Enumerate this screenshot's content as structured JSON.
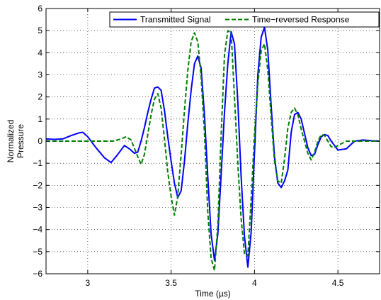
{
  "chart_data": {
    "type": "line",
    "xlabel": "Time (µs)",
    "ylabel": [
      "Normalized",
      "Pressure"
    ],
    "xlim": [
      2.75,
      4.75
    ],
    "ylim": [
      -6,
      6
    ],
    "xticks": [
      3,
      3.5,
      4,
      4.5
    ],
    "xtick_labels": [
      "3",
      "3.5",
      "4",
      "4.5"
    ],
    "yticks": [
      -6,
      -5,
      -4,
      -3,
      -2,
      -1,
      0,
      1,
      2,
      3,
      4,
      5,
      6
    ],
    "ytick_labels": [
      "−6",
      "−5",
      "−4",
      "−3",
      "−2",
      "−1",
      "0",
      "1",
      "2",
      "3",
      "4",
      "5",
      "6"
    ],
    "grid": true,
    "legend_position": "top-right",
    "series": [
      {
        "name": "Transmitted Signal",
        "color": "#0000ff",
        "style": "solid",
        "x": [
          2.75,
          2.8,
          2.85,
          2.9,
          2.95,
          2.97,
          3.0,
          3.05,
          3.1,
          3.14,
          3.18,
          3.22,
          3.25,
          3.28,
          3.3,
          3.32,
          3.34,
          3.36,
          3.38,
          3.4,
          3.42,
          3.44,
          3.46,
          3.48,
          3.5,
          3.52,
          3.54,
          3.56,
          3.58,
          3.6,
          3.62,
          3.64,
          3.66,
          3.68,
          3.7,
          3.72,
          3.74,
          3.76,
          3.78,
          3.8,
          3.82,
          3.84,
          3.86,
          3.88,
          3.9,
          3.92,
          3.94,
          3.96,
          3.98,
          4.0,
          4.02,
          4.04,
          4.06,
          4.08,
          4.1,
          4.12,
          4.14,
          4.16,
          4.18,
          4.2,
          4.22,
          4.24,
          4.26,
          4.28,
          4.3,
          4.32,
          4.34,
          4.36,
          4.38,
          4.4,
          4.42,
          4.44,
          4.46,
          4.48,
          4.5,
          4.55,
          4.6,
          4.65,
          4.7,
          4.75
        ],
        "y": [
          0.1,
          0.08,
          0.1,
          0.25,
          0.38,
          0.4,
          0.2,
          -0.3,
          -0.75,
          -0.97,
          -0.6,
          -0.2,
          -0.35,
          -0.55,
          -0.5,
          0.0,
          0.6,
          1.3,
          1.9,
          2.4,
          2.45,
          2.3,
          1.4,
          0.2,
          -0.9,
          -1.9,
          -2.55,
          -2.25,
          -0.9,
          0.8,
          2.3,
          3.5,
          3.85,
          3.3,
          1.2,
          -1.6,
          -4.2,
          -5.4,
          -4.2,
          -1.5,
          1.3,
          3.5,
          4.95,
          4.4,
          1.8,
          -1.6,
          -4.3,
          -5.7,
          -4.1,
          -0.5,
          3.0,
          4.7,
          5.15,
          4.1,
          1.6,
          -0.7,
          -1.9,
          -2.1,
          -1.8,
          -1.3,
          0.4,
          1.2,
          1.3,
          1.0,
          0.35,
          -0.3,
          -0.65,
          -0.6,
          -0.15,
          0.2,
          0.3,
          0.25,
          0.0,
          -0.2,
          -0.4,
          -0.35,
          0.0,
          0.05,
          0.02,
          0.0
        ]
      },
      {
        "name": "Time−reversed Response",
        "color": "#007f00",
        "style": "dashed",
        "x": [
          2.75,
          2.85,
          2.95,
          3.05,
          3.15,
          3.2,
          3.23,
          3.26,
          3.3,
          3.32,
          3.34,
          3.36,
          3.38,
          3.4,
          3.42,
          3.44,
          3.46,
          3.48,
          3.5,
          3.52,
          3.54,
          3.56,
          3.58,
          3.6,
          3.62,
          3.64,
          3.66,
          3.68,
          3.7,
          3.72,
          3.74,
          3.76,
          3.78,
          3.8,
          3.82,
          3.84,
          3.86,
          3.88,
          3.9,
          3.92,
          3.94,
          3.96,
          3.98,
          4.0,
          4.02,
          4.04,
          4.06,
          4.08,
          4.1,
          4.12,
          4.14,
          4.16,
          4.18,
          4.2,
          4.22,
          4.24,
          4.26,
          4.28,
          4.3,
          4.32,
          4.34,
          4.36,
          4.38,
          4.4,
          4.42,
          4.44,
          4.46,
          4.48,
          4.5,
          4.55,
          4.6,
          4.65,
          4.7,
          4.75
        ],
        "y": [
          0.0,
          0.0,
          0.0,
          0.0,
          0.0,
          0.1,
          0.2,
          0.05,
          -0.7,
          -1.05,
          -0.6,
          0.3,
          1.2,
          1.9,
          2.15,
          1.5,
          0.1,
          -1.4,
          -2.5,
          -3.35,
          -2.5,
          -0.6,
          1.4,
          3.2,
          4.5,
          4.9,
          4.5,
          2.9,
          0.4,
          -3.2,
          -5.3,
          -5.85,
          -3.8,
          0.3,
          3.9,
          5.0,
          4.9,
          2.0,
          -1.0,
          -3.5,
          -5.1,
          -5.2,
          -2.6,
          0.3,
          2.6,
          4.1,
          4.4,
          3.2,
          1.1,
          -0.9,
          -1.8,
          -1.9,
          -0.8,
          0.6,
          1.3,
          1.5,
          1.2,
          0.55,
          0.0,
          -0.55,
          -0.85,
          -0.5,
          0.0,
          0.3,
          0.25,
          0.0,
          -0.25,
          -0.3,
          -0.2,
          0.0,
          0.0,
          0.0,
          0.0,
          0.0
        ]
      }
    ]
  }
}
